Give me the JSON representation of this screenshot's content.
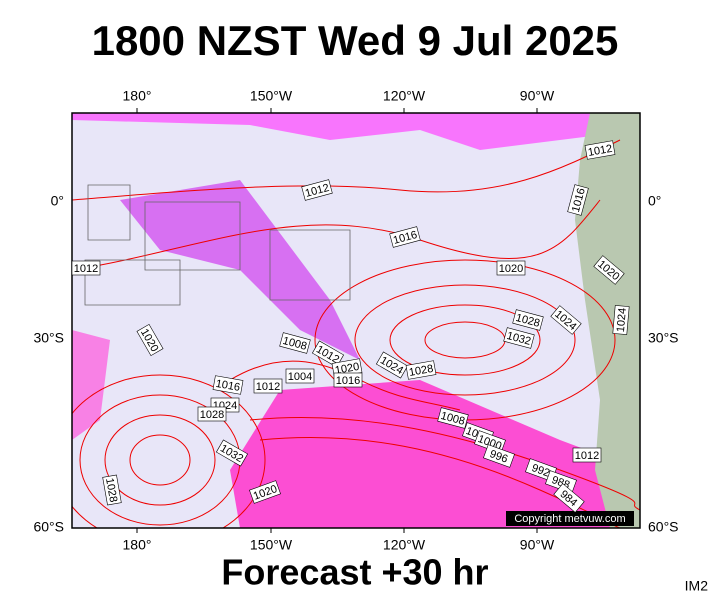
{
  "header": {
    "title": "1800 NZST Wed 9 Jul 2025"
  },
  "map": {
    "lon_labels_top": [
      "180°",
      "150°W",
      "120°W",
      "90°W"
    ],
    "lon_labels_bottom": [
      "180°",
      "150°W",
      "120°W",
      "90°W"
    ],
    "lat_labels_left": [
      "0°",
      "30°S",
      "60°S"
    ],
    "lat_labels_right": [
      "0°",
      "30°S",
      "60°S"
    ],
    "isobar_labels": [
      "1012",
      "1012",
      "1016",
      "1016",
      "1012",
      "1020",
      "1020",
      "1024",
      "1028",
      "1024",
      "1032",
      "1020",
      "1008",
      "1012",
      "1004",
      "1020",
      "1016",
      "1024",
      "1028",
      "1016",
      "1012",
      "1024",
      "1028",
      "1032",
      "1008",
      "1004",
      "1000",
      "996",
      "1012",
      "992",
      "988",
      "984",
      "1028",
      "1020"
    ],
    "copyright": "Copyright metvuw.com"
  },
  "footer": {
    "forecast": "Forecast +30 hr",
    "code": "IM2"
  }
}
